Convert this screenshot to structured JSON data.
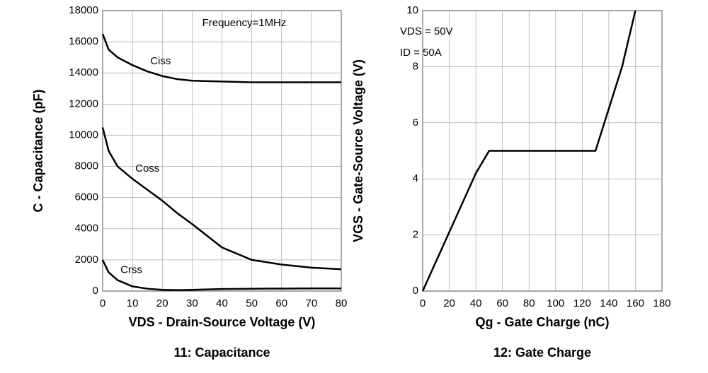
{
  "chart_data": [
    {
      "type": "line",
      "caption": "11: Capacitance",
      "x_label": "VDS - Drain-Source Voltage (V)",
      "y_label": "C - Capacitance (pF)",
      "annotations": [
        "Frequency=1MHz"
      ],
      "x": [
        0,
        2,
        5,
        10,
        15,
        20,
        25,
        30,
        40,
        50,
        60,
        70,
        80
      ],
      "series": [
        {
          "name": "Ciss",
          "color": "#000000",
          "values": [
            16500,
            15500,
            15000,
            14500,
            14100,
            13800,
            13600,
            13500,
            13450,
            13400,
            13400,
            13400,
            13400
          ]
        },
        {
          "name": "Coss",
          "color": "#000000",
          "values": [
            10500,
            9000,
            8000,
            7200,
            6500,
            5800,
            5000,
            4300,
            2800,
            2000,
            1700,
            1500,
            1400
          ]
        },
        {
          "name": "Crss",
          "color": "#000000",
          "values": [
            2000,
            1200,
            700,
            300,
            150,
            80,
            60,
            80,
            130,
            150,
            160,
            170,
            170
          ]
        }
      ],
      "xlim": [
        0,
        80
      ],
      "xticks": [
        0,
        10,
        20,
        30,
        40,
        50,
        60,
        70,
        80
      ],
      "ylim": [
        0,
        18000
      ],
      "yticks": [
        0,
        2000,
        4000,
        6000,
        8000,
        10000,
        12000,
        14000,
        16000,
        18000
      ],
      "grid": true
    },
    {
      "type": "line",
      "caption": "12: Gate Charge",
      "x_label": "Qg - Gate Charge (nC)",
      "y_label": "VGS - Gate-Source Voltage (V)",
      "annotations": [
        "VDS = 50V",
        "ID = 50A"
      ],
      "x": [
        0,
        40,
        50,
        70,
        130,
        150,
        160
      ],
      "series": [
        {
          "color": "#000000",
          "values": [
            0,
            4.2,
            5,
            5,
            5,
            8,
            10
          ]
        }
      ],
      "xlim": [
        0,
        180
      ],
      "xticks": [
        0,
        20,
        40,
        60,
        80,
        100,
        120,
        140,
        160,
        180
      ],
      "ylim": [
        0,
        10
      ],
      "yticks": [
        0,
        2,
        4,
        6,
        8,
        10
      ],
      "grid": true
    }
  ]
}
